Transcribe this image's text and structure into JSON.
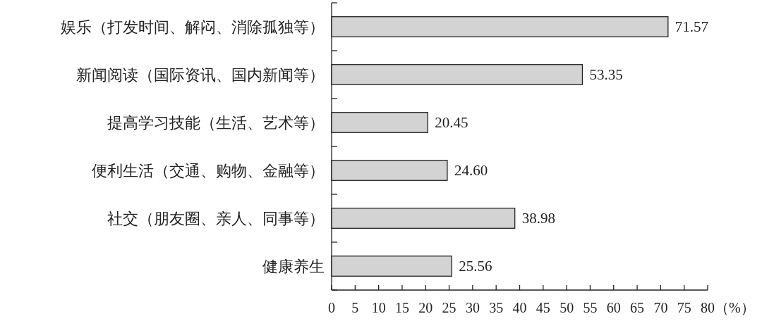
{
  "chart_data": {
    "type": "bar",
    "orientation": "horizontal",
    "categories": [
      "娱乐（打发时间、解闷、消除孤独等）",
      "新闻阅读（国际资讯、国内新闻等）",
      "提高学习技能（生活、艺术等）",
      "便利生活（交通、购物、金融等）",
      "社交（朋友圈、亲人、同事等）",
      "健康养生"
    ],
    "values": [
      71.57,
      53.35,
      20.45,
      24.6,
      38.98,
      25.56
    ],
    "value_labels": [
      "71.57",
      "53.35",
      "20.45",
      "24.60",
      "38.98",
      "25.56"
    ],
    "color": "#d3d3d3",
    "xlim": [
      0,
      80
    ],
    "xticks": [
      0,
      5,
      10,
      15,
      20,
      25,
      30,
      35,
      40,
      45,
      50,
      55,
      60,
      65,
      70,
      75,
      80
    ],
    "xlabel": "（%）"
  }
}
